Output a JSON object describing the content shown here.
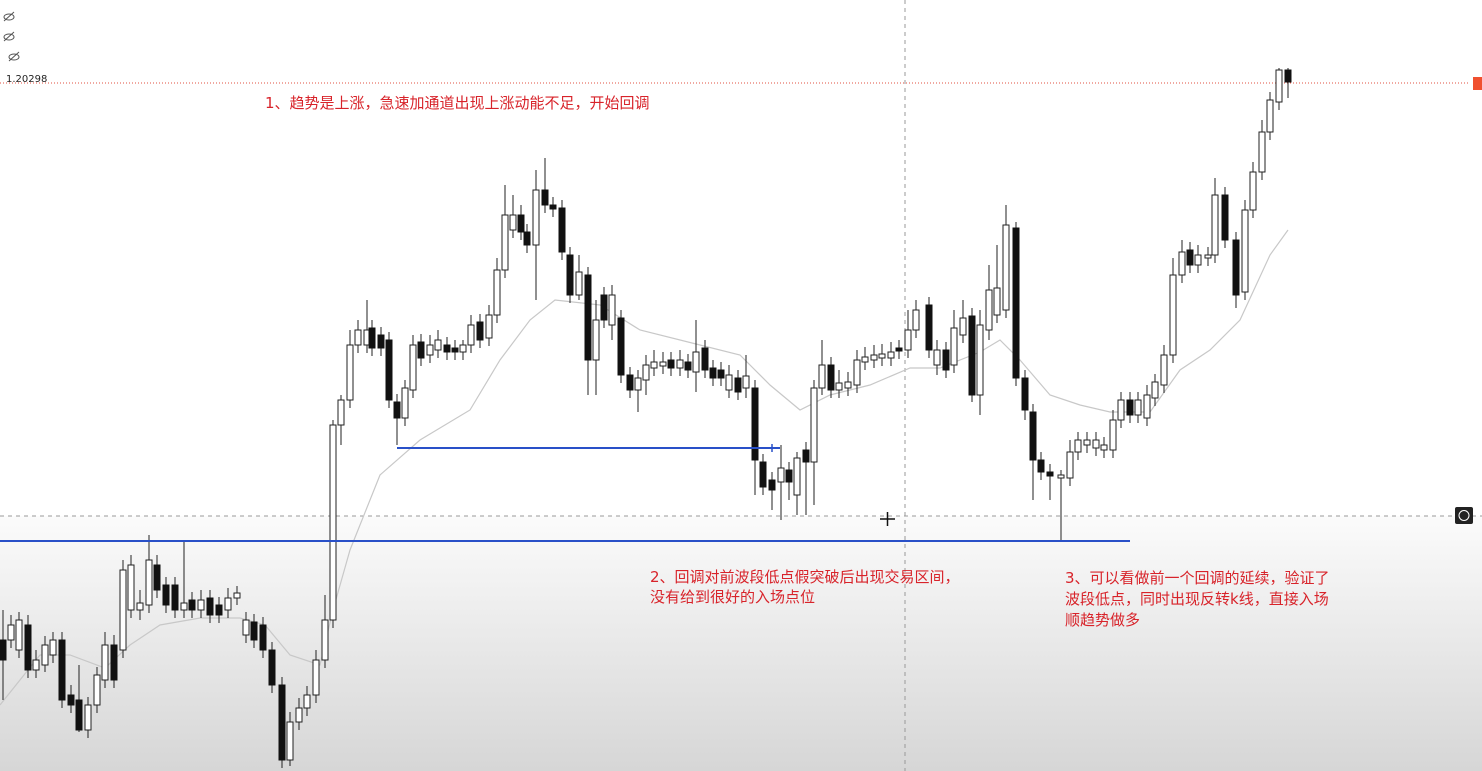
{
  "price_label": "1.20298",
  "annotations": [
    {
      "lines": [
        "1、趋势是上涨，急速加通道出现上涨动能不足，开始回调"
      ]
    },
    {
      "lines": [
        "2、回调对前波段低点假突破后出现交易区间，",
        "没有给到很好的入场点位"
      ]
    },
    {
      "lines": [
        "3、可以看做前一个回调的延续，验证了",
        "波段低点，同时出现反转k线，直接入场",
        "顺趋势做多"
      ]
    }
  ]
}
